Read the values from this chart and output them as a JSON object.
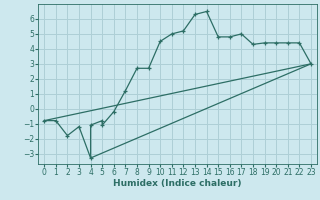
{
  "title": "",
  "xlabel": "Humidex (Indice chaleur)",
  "background_color": "#cde8ee",
  "grid_color": "#aecfd6",
  "line_color": "#2d6e65",
  "xlim": [
    -0.5,
    23.5
  ],
  "ylim": [
    -3.7,
    7.0
  ],
  "xticks": [
    0,
    1,
    2,
    3,
    4,
    5,
    6,
    7,
    8,
    9,
    10,
    11,
    12,
    13,
    14,
    15,
    16,
    17,
    18,
    19,
    20,
    21,
    22,
    23
  ],
  "yticks": [
    -3,
    -2,
    -1,
    0,
    1,
    2,
    3,
    4,
    5,
    6
  ],
  "line1_x": [
    0,
    1,
    2,
    3,
    4,
    4,
    5,
    5,
    6,
    7,
    8,
    9,
    10,
    11,
    12,
    13,
    14,
    15,
    16,
    17,
    18,
    19,
    20,
    21,
    22,
    23
  ],
  "line1_y": [
    -0.8,
    -0.8,
    -1.8,
    -1.2,
    -3.3,
    -1.1,
    -0.8,
    -1.1,
    -0.2,
    1.2,
    2.7,
    2.7,
    4.5,
    5.0,
    5.2,
    6.3,
    6.5,
    4.8,
    4.8,
    5.0,
    4.3,
    4.4,
    4.4,
    4.4,
    4.4,
    3.0
  ],
  "line2_x": [
    0,
    23
  ],
  "line2_y": [
    -0.8,
    3.0
  ],
  "line3_x": [
    4,
    23
  ],
  "line3_y": [
    -3.3,
    3.0
  ]
}
